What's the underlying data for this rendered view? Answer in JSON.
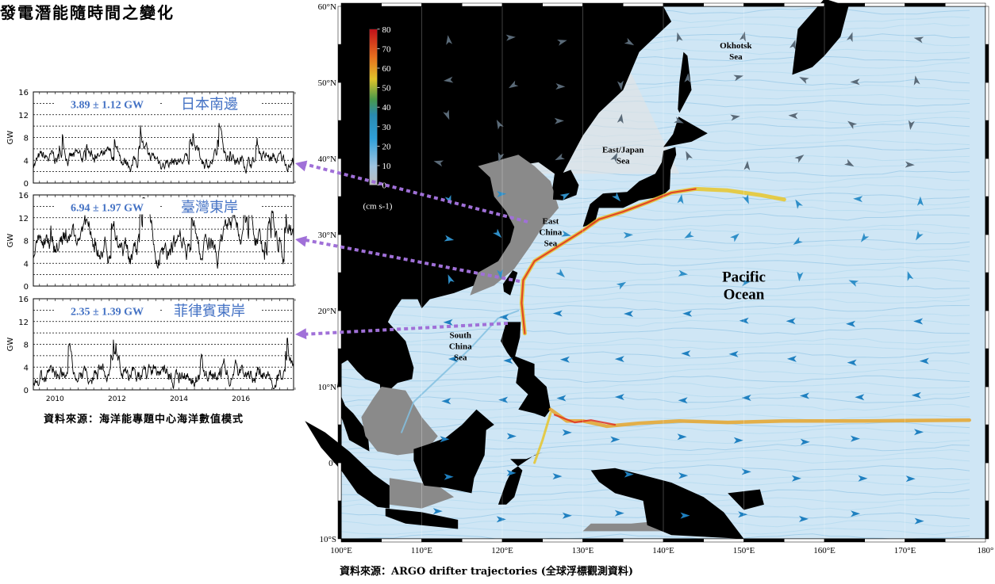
{
  "left_title": "發電潛能隨時間之變化",
  "left_source": "資料來源：海洋能專題中心海洋數值模式",
  "right_source": "資料來源：ARGO drifter trajectories (全球浮標觀測資料)",
  "colors": {
    "label_blue": "#4472c4",
    "arrow_purple": "#a070d8",
    "ocean_bg": "#cfe6f5",
    "land": "#000000",
    "shelf": "#8a8a8a"
  },
  "chart_data": [
    {
      "type": "line",
      "label_text": "3.89 ± 1.12 GW",
      "region_text": "日本南邊",
      "ylabel": "GW",
      "ylim": [
        0,
        16
      ],
      "yticks": [
        "0",
        "4",
        "8",
        "12",
        "16"
      ],
      "xlim": [
        2009.3,
        2017.7
      ],
      "xticks": [],
      "series": [
        {
          "mean": 3.89,
          "std": 1.12
        }
      ]
    },
    {
      "type": "line",
      "label_text": "6.94 ± 1.97 GW",
      "region_text": "臺灣東岸",
      "ylabel": "GW",
      "ylim": [
        0,
        16
      ],
      "yticks": [
        "0",
        "4",
        "8",
        "12",
        "16"
      ],
      "xlim": [
        2009.3,
        2017.7
      ],
      "xticks": [],
      "series": [
        {
          "mean": 6.94,
          "std": 1.97
        }
      ]
    },
    {
      "type": "line",
      "label_text": "2.35 ± 1.39 GW",
      "region_text": "菲律賓東岸",
      "ylabel": "GW",
      "ylim": [
        0,
        16
      ],
      "yticks": [
        "0",
        "4",
        "8",
        "12",
        "16"
      ],
      "xlim": [
        2009.3,
        2017.7
      ],
      "xticks": [
        "2010",
        "2012",
        "2014",
        "2016"
      ],
      "series": [
        {
          "mean": 2.35,
          "std": 1.39
        }
      ]
    },
    {
      "type": "heatmap",
      "colorbar": {
        "ticks": [
          "0",
          "10",
          "20",
          "30",
          "40",
          "50",
          "60",
          "70",
          "80"
        ],
        "unit_label": "(cm s-1)"
      },
      "lat_ticks": [
        "60°N",
        "50°N",
        "40°N",
        "30°N",
        "20°N",
        "10°N",
        "0°",
        "10°S"
      ],
      "lon_ticks": [
        "100°E",
        "110°E",
        "120°E",
        "130°E",
        "140°E",
        "150°E",
        "160°E",
        "170°E",
        "180°"
      ],
      "labels": {
        "okhotsk": [
          "Okhotsk",
          "Sea"
        ],
        "east_japan": [
          "East/Japan",
          "Sea"
        ],
        "east_china": [
          "East",
          "China",
          "Sea"
        ],
        "south_china": [
          "South",
          "China",
          "Sea"
        ],
        "pacific": [
          "Pacific",
          "Ocean"
        ]
      },
      "xlim": [
        100,
        180
      ],
      "ylim": [
        -10,
        60
      ]
    }
  ]
}
